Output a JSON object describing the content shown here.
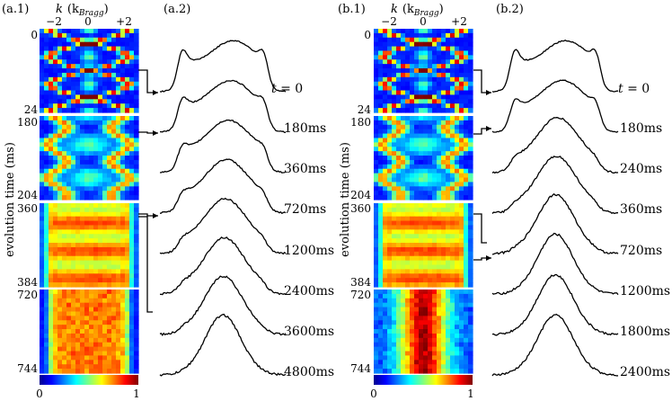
{
  "panels": {
    "a1": {
      "label": "(a.1)",
      "axis_title_main": "k",
      "axis_title_open": "(k",
      "axis_title_sub": "Bragg",
      "axis_title_close": ")",
      "k_ticks": [
        "−2",
        "0",
        "+2"
      ],
      "blocks": [
        {
          "start": "0",
          "end": "24",
          "kind": "bouncing"
        },
        {
          "start": "180",
          "end": "204",
          "kind": "oscillating"
        },
        {
          "start": "360",
          "end": "384",
          "kind": "damped"
        },
        {
          "start": "720",
          "end": "744",
          "kind": "flat"
        }
      ]
    },
    "a2": {
      "label": "(a.2)",
      "first_time_prefix": "t = ",
      "first_time_value": "0",
      "times": [
        "180ms",
        "360ms",
        "720ms",
        "1200ms",
        "2400ms",
        "3600ms",
        "4800ms"
      ]
    },
    "b1": {
      "label": "(b.1)",
      "axis_title_main": "k",
      "axis_title_open": "(k",
      "axis_title_sub": "Bragg",
      "axis_title_close": ")",
      "k_ticks": [
        "−2",
        "0",
        "+2"
      ],
      "blocks": [
        {
          "start": "0",
          "end": "24",
          "kind": "bouncing"
        },
        {
          "start": "180",
          "end": "204",
          "kind": "oscillating"
        },
        {
          "start": "360",
          "end": "384",
          "kind": "damped"
        },
        {
          "start": "720",
          "end": "744",
          "kind": "central"
        }
      ]
    },
    "b2": {
      "label": "(b.2)",
      "first_time_prefix": "t = ",
      "first_time_value": "0",
      "times": [
        "180ms",
        "240ms",
        "360ms",
        "720ms",
        "1200ms",
        "1800ms",
        "2400ms"
      ]
    }
  },
  "y_axis_label": "evolution time (ms)",
  "colorbar": {
    "min": "0",
    "max": "1",
    "colormap": "jet"
  },
  "colors": {
    "heatmap_background": "#1c2fa8",
    "trace": "#000000"
  }
}
